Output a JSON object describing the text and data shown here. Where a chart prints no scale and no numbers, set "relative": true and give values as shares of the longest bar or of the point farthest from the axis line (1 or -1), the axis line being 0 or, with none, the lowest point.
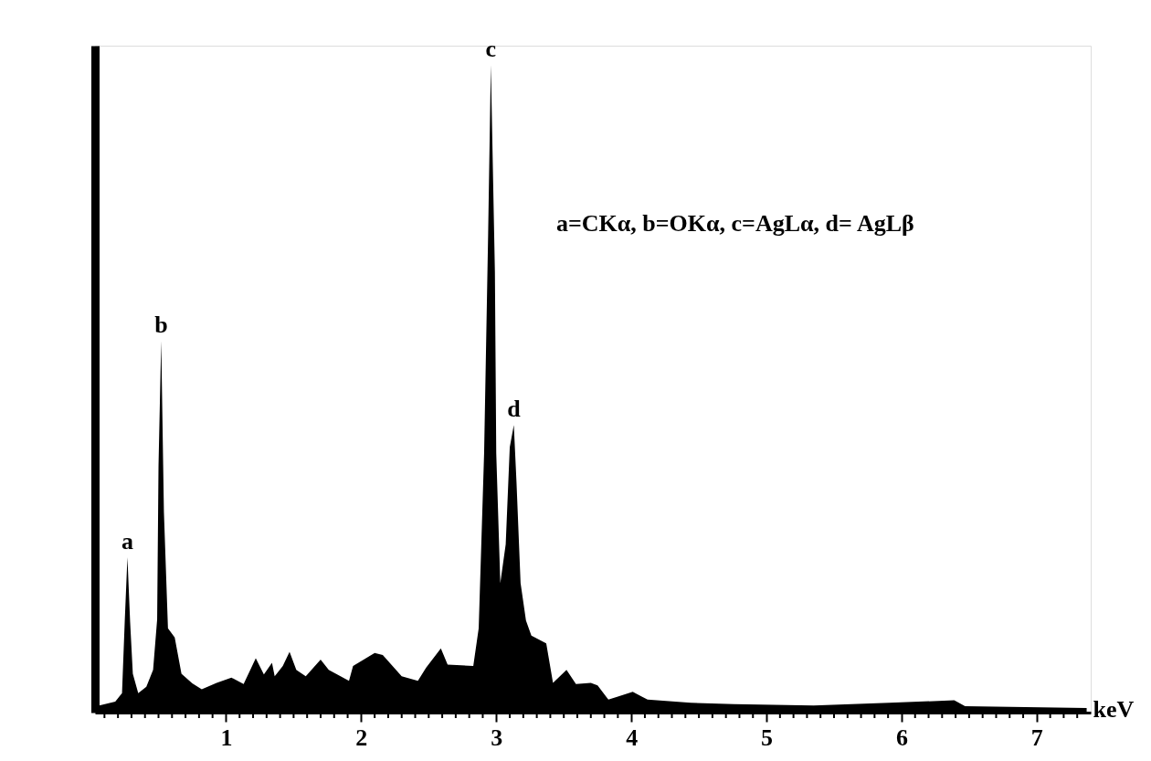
{
  "chart_data": {
    "type": "area",
    "relative": true,
    "xlabel": "keV",
    "x": [
      0.04,
      0.18,
      0.23,
      0.25,
      0.27,
      0.29,
      0.31,
      0.35,
      0.41,
      0.46,
      0.49,
      0.5,
      0.52,
      0.54,
      0.57,
      0.62,
      0.67,
      0.75,
      0.82,
      0.93,
      1.04,
      1.13,
      1.22,
      1.28,
      1.34,
      1.36,
      1.42,
      1.47,
      1.52,
      1.59,
      1.7,
      1.76,
      1.91,
      1.94,
      2.1,
      2.16,
      2.3,
      2.42,
      2.48,
      2.59,
      2.64,
      2.83,
      2.87,
      2.91,
      2.94,
      2.96,
      2.99,
      3.0,
      3.03,
      3.07,
      3.1,
      3.13,
      3.15,
      3.18,
      3.22,
      3.26,
      3.37,
      3.42,
      3.52,
      3.59,
      3.7,
      3.75,
      3.83,
      4.01,
      4.12,
      4.44,
      4.76,
      5.35,
      5.91,
      6.39,
      6.47,
      7.37
    ],
    "series": [
      {
        "color": "#000000",
        "values": [
          0.01,
          0.017,
          0.03,
          0.14,
          0.24,
          0.14,
          0.06,
          0.03,
          0.04,
          0.066,
          0.144,
          0.38,
          0.574,
          0.31,
          0.13,
          0.116,
          0.06,
          0.045,
          0.036,
          0.046,
          0.054,
          0.044,
          0.084,
          0.059,
          0.077,
          0.056,
          0.072,
          0.094,
          0.066,
          0.056,
          0.082,
          0.066,
          0.049,
          0.072,
          0.092,
          0.089,
          0.056,
          0.049,
          0.069,
          0.099,
          0.074,
          0.072,
          0.13,
          0.4,
          0.74,
          1.0,
          0.68,
          0.4,
          0.2,
          0.26,
          0.41,
          0.444,
          0.355,
          0.2,
          0.142,
          0.119,
          0.107,
          0.046,
          0.066,
          0.044,
          0.046,
          0.042,
          0.02,
          0.032,
          0.02,
          0.015,
          0.013,
          0.011,
          0.015,
          0.019,
          0.01,
          0.007
        ]
      }
    ],
    "xlim": [
      0.03,
      7.4
    ],
    "xticks": [
      {
        "value": 0.1,
        "label": null
      },
      {
        "value": 0.2,
        "label": null
      },
      {
        "value": 0.3,
        "label": null
      },
      {
        "value": 0.4,
        "label": null
      },
      {
        "value": 0.5,
        "label": null
      },
      {
        "value": 0.6,
        "label": null
      },
      {
        "value": 0.7,
        "label": null
      },
      {
        "value": 0.8,
        "label": null
      },
      {
        "value": 0.9,
        "label": null
      },
      1,
      {
        "value": 1.1,
        "label": null
      },
      {
        "value": 1.2,
        "label": null
      },
      {
        "value": 1.3,
        "label": null
      },
      {
        "value": 1.4,
        "label": null
      },
      {
        "value": 1.5,
        "label": null
      },
      {
        "value": 1.6,
        "label": null
      },
      {
        "value": 1.7,
        "label": null
      },
      {
        "value": 1.8,
        "label": null
      },
      {
        "value": 1.9,
        "label": null
      },
      2,
      {
        "value": 2.1,
        "label": null
      },
      {
        "value": 2.2,
        "label": null
      },
      {
        "value": 2.3,
        "label": null
      },
      {
        "value": 2.4,
        "label": null
      },
      {
        "value": 2.5,
        "label": null
      },
      {
        "value": 2.6,
        "label": null
      },
      {
        "value": 2.7,
        "label": null
      },
      {
        "value": 2.8,
        "label": null
      },
      {
        "value": 2.9,
        "label": null
      },
      3,
      {
        "value": 3.1,
        "label": null
      },
      {
        "value": 3.2,
        "label": null
      },
      {
        "value": 3.3,
        "label": null
      },
      {
        "value": 3.4,
        "label": null
      },
      {
        "value": 3.5,
        "label": null
      },
      {
        "value": 3.6,
        "label": null
      },
      {
        "value": 3.7,
        "label": null
      },
      {
        "value": 3.8,
        "label": null
      },
      {
        "value": 3.9,
        "label": null
      },
      4,
      {
        "value": 4.1,
        "label": null
      },
      {
        "value": 4.2,
        "label": null
      },
      {
        "value": 4.3,
        "label": null
      },
      {
        "value": 4.4,
        "label": null
      },
      {
        "value": 4.5,
        "label": null
      },
      {
        "value": 4.6,
        "label": null
      },
      {
        "value": 4.7,
        "label": null
      },
      {
        "value": 4.8,
        "label": null
      },
      {
        "value": 4.9,
        "label": null
      },
      5,
      {
        "value": 5.1,
        "label": null
      },
      {
        "value": 5.2,
        "label": null
      },
      {
        "value": 5.3,
        "label": null
      },
      {
        "value": 5.4,
        "label": null
      },
      {
        "value": 5.5,
        "label": null
      },
      {
        "value": 5.6,
        "label": null
      },
      {
        "value": 5.7,
        "label": null
      },
      {
        "value": 5.8,
        "label": null
      },
      {
        "value": 5.9,
        "label": null
      },
      6,
      {
        "value": 6.1,
        "label": null
      },
      {
        "value": 6.2,
        "label": null
      },
      {
        "value": 6.3,
        "label": null
      },
      {
        "value": 6.4,
        "label": null
      },
      {
        "value": 6.5,
        "label": null
      },
      {
        "value": 6.6,
        "label": null
      },
      {
        "value": 6.7,
        "label": null
      },
      {
        "value": 6.8,
        "label": null
      },
      {
        "value": 6.9,
        "label": null
      },
      7,
      {
        "value": 7.1,
        "label": null
      },
      {
        "value": 7.2,
        "label": null
      },
      {
        "value": 7.3,
        "label": null
      }
    ],
    "annotations": [
      {
        "text": "a",
        "x": 0.27,
        "y": 0.24
      },
      {
        "text": "b",
        "x": 0.52,
        "y": 0.574
      },
      {
        "text": "c",
        "x": 2.96,
        "y": 1.0
      },
      {
        "text": "d",
        "x": 3.13,
        "y": 0.444
      },
      "a=CKα, b=OKα, c=AgLα, d= AgLβ"
    ]
  }
}
